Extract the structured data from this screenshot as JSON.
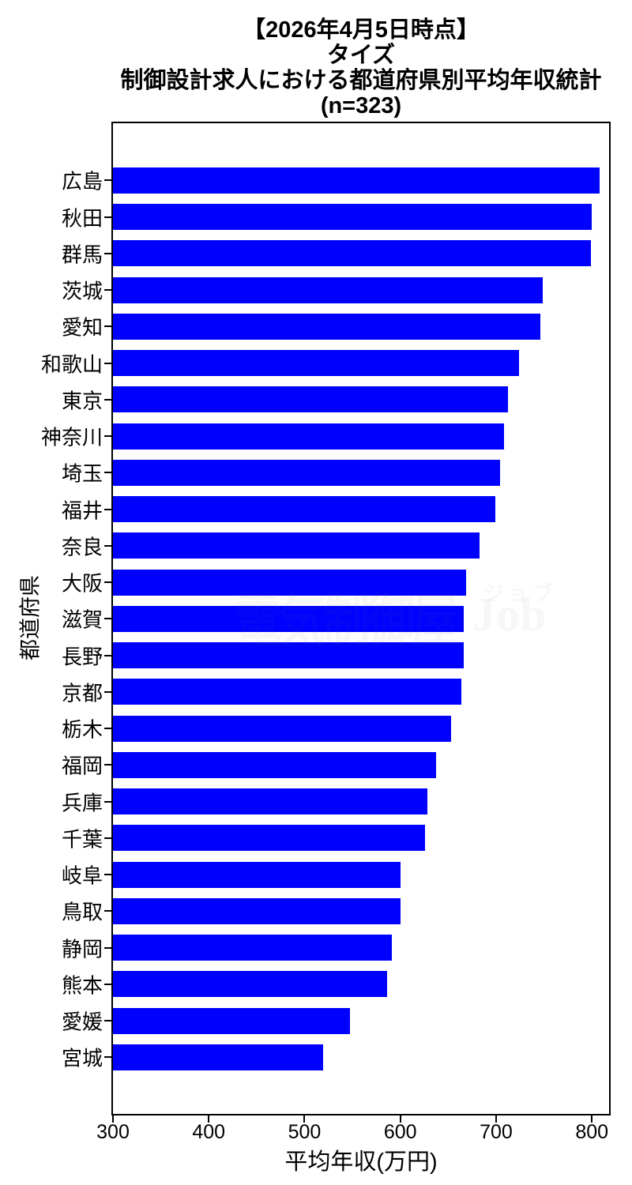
{
  "title": {
    "line1": "【2026年4月5日時点】",
    "line2": "タイズ",
    "line3": "制御設計求人における都道府県別平均年収統計",
    "line4": "(n=323)"
  },
  "watermark": {
    "main_text": "電気制御屋",
    "sub_top_text": "ジョブ",
    "sub_main_text": "Job"
  },
  "chart_data": {
    "type": "bar",
    "orientation": "horizontal",
    "title": "【2026年4月5日時点】\nタイズ\n制御設計求人における都道府県別平均年収統計\n(n=323)",
    "xlabel": "平均年収(万円)",
    "ylabel": "都道府県",
    "categories": [
      "広島",
      "秋田",
      "群馬",
      "茨城",
      "愛知",
      "和歌山",
      "東京",
      "神奈川",
      "埼玉",
      "福井",
      "奈良",
      "大阪",
      "滋賀",
      "長野",
      "京都",
      "栃木",
      "福岡",
      "兵庫",
      "千葉",
      "岐阜",
      "鳥取",
      "静岡",
      "熊本",
      "愛媛",
      "宮城"
    ],
    "values": [
      808,
      800,
      799,
      749,
      746,
      724,
      712,
      708,
      704,
      699,
      683,
      669,
      666,
      666,
      664,
      653,
      637,
      628,
      626,
      600,
      600,
      591,
      586,
      547,
      519
    ],
    "xticks": [
      300,
      400,
      500,
      600,
      700,
      800
    ],
    "xlim": [
      300,
      818
    ],
    "bar_color": "#0000ff",
    "grid": false,
    "legend": "none",
    "sample_size": 323
  }
}
